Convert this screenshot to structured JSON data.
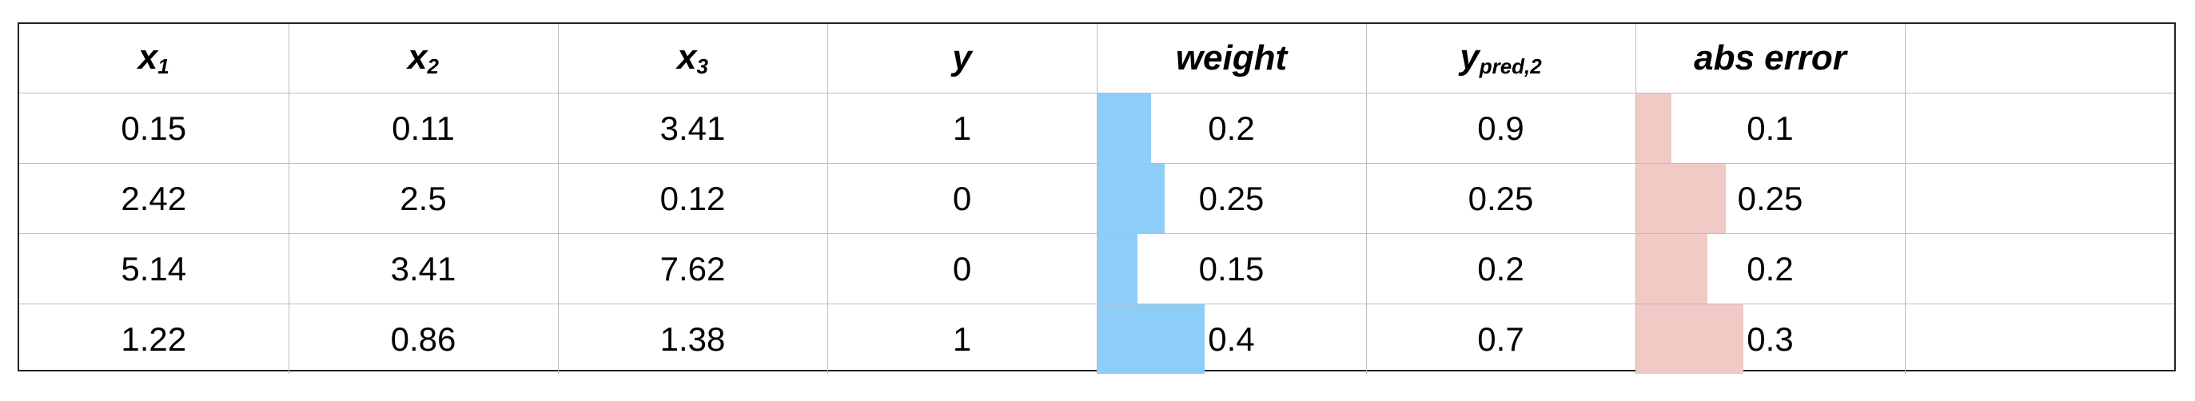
{
  "header": {
    "x1": {
      "base": "x",
      "sub": "1"
    },
    "x2": {
      "base": "x",
      "sub": "2"
    },
    "x3": {
      "base": "x",
      "sub": "3"
    },
    "y": {
      "base": "y",
      "sub": ""
    },
    "weight": "weight",
    "ypred": {
      "base": "y",
      "sub": "pred,2"
    },
    "abs_error": "abs error",
    "extra": ""
  },
  "rows": [
    {
      "x1": "0.15",
      "x2": "0.11",
      "x3": "3.41",
      "y": "1",
      "weight": "0.2",
      "ypred": "0.9",
      "abs_error": "0.1"
    },
    {
      "x1": "2.42",
      "x2": "2.5",
      "x3": "0.12",
      "y": "0",
      "weight": "0.25",
      "ypred": "0.25",
      "abs_error": "0.25"
    },
    {
      "x1": "5.14",
      "x2": "3.41",
      "x3": "7.62",
      "y": "0",
      "weight": "0.15",
      "ypred": "0.2",
      "abs_error": "0.2"
    },
    {
      "x1": "1.22",
      "x2": "0.86",
      "x3": "1.38",
      "y": "1",
      "weight": "0.4",
      "ypred": "0.7",
      "abs_error": "0.3"
    }
  ],
  "bar_scale": {
    "weight_full_scale": 1.0,
    "abs_error_full_scale": 0.75
  },
  "colors": {
    "weight_bar": "#8ecdf8",
    "abs_error_bar": "#f1c9c5",
    "grid": "#bdbdbd",
    "border": "#222222"
  }
}
